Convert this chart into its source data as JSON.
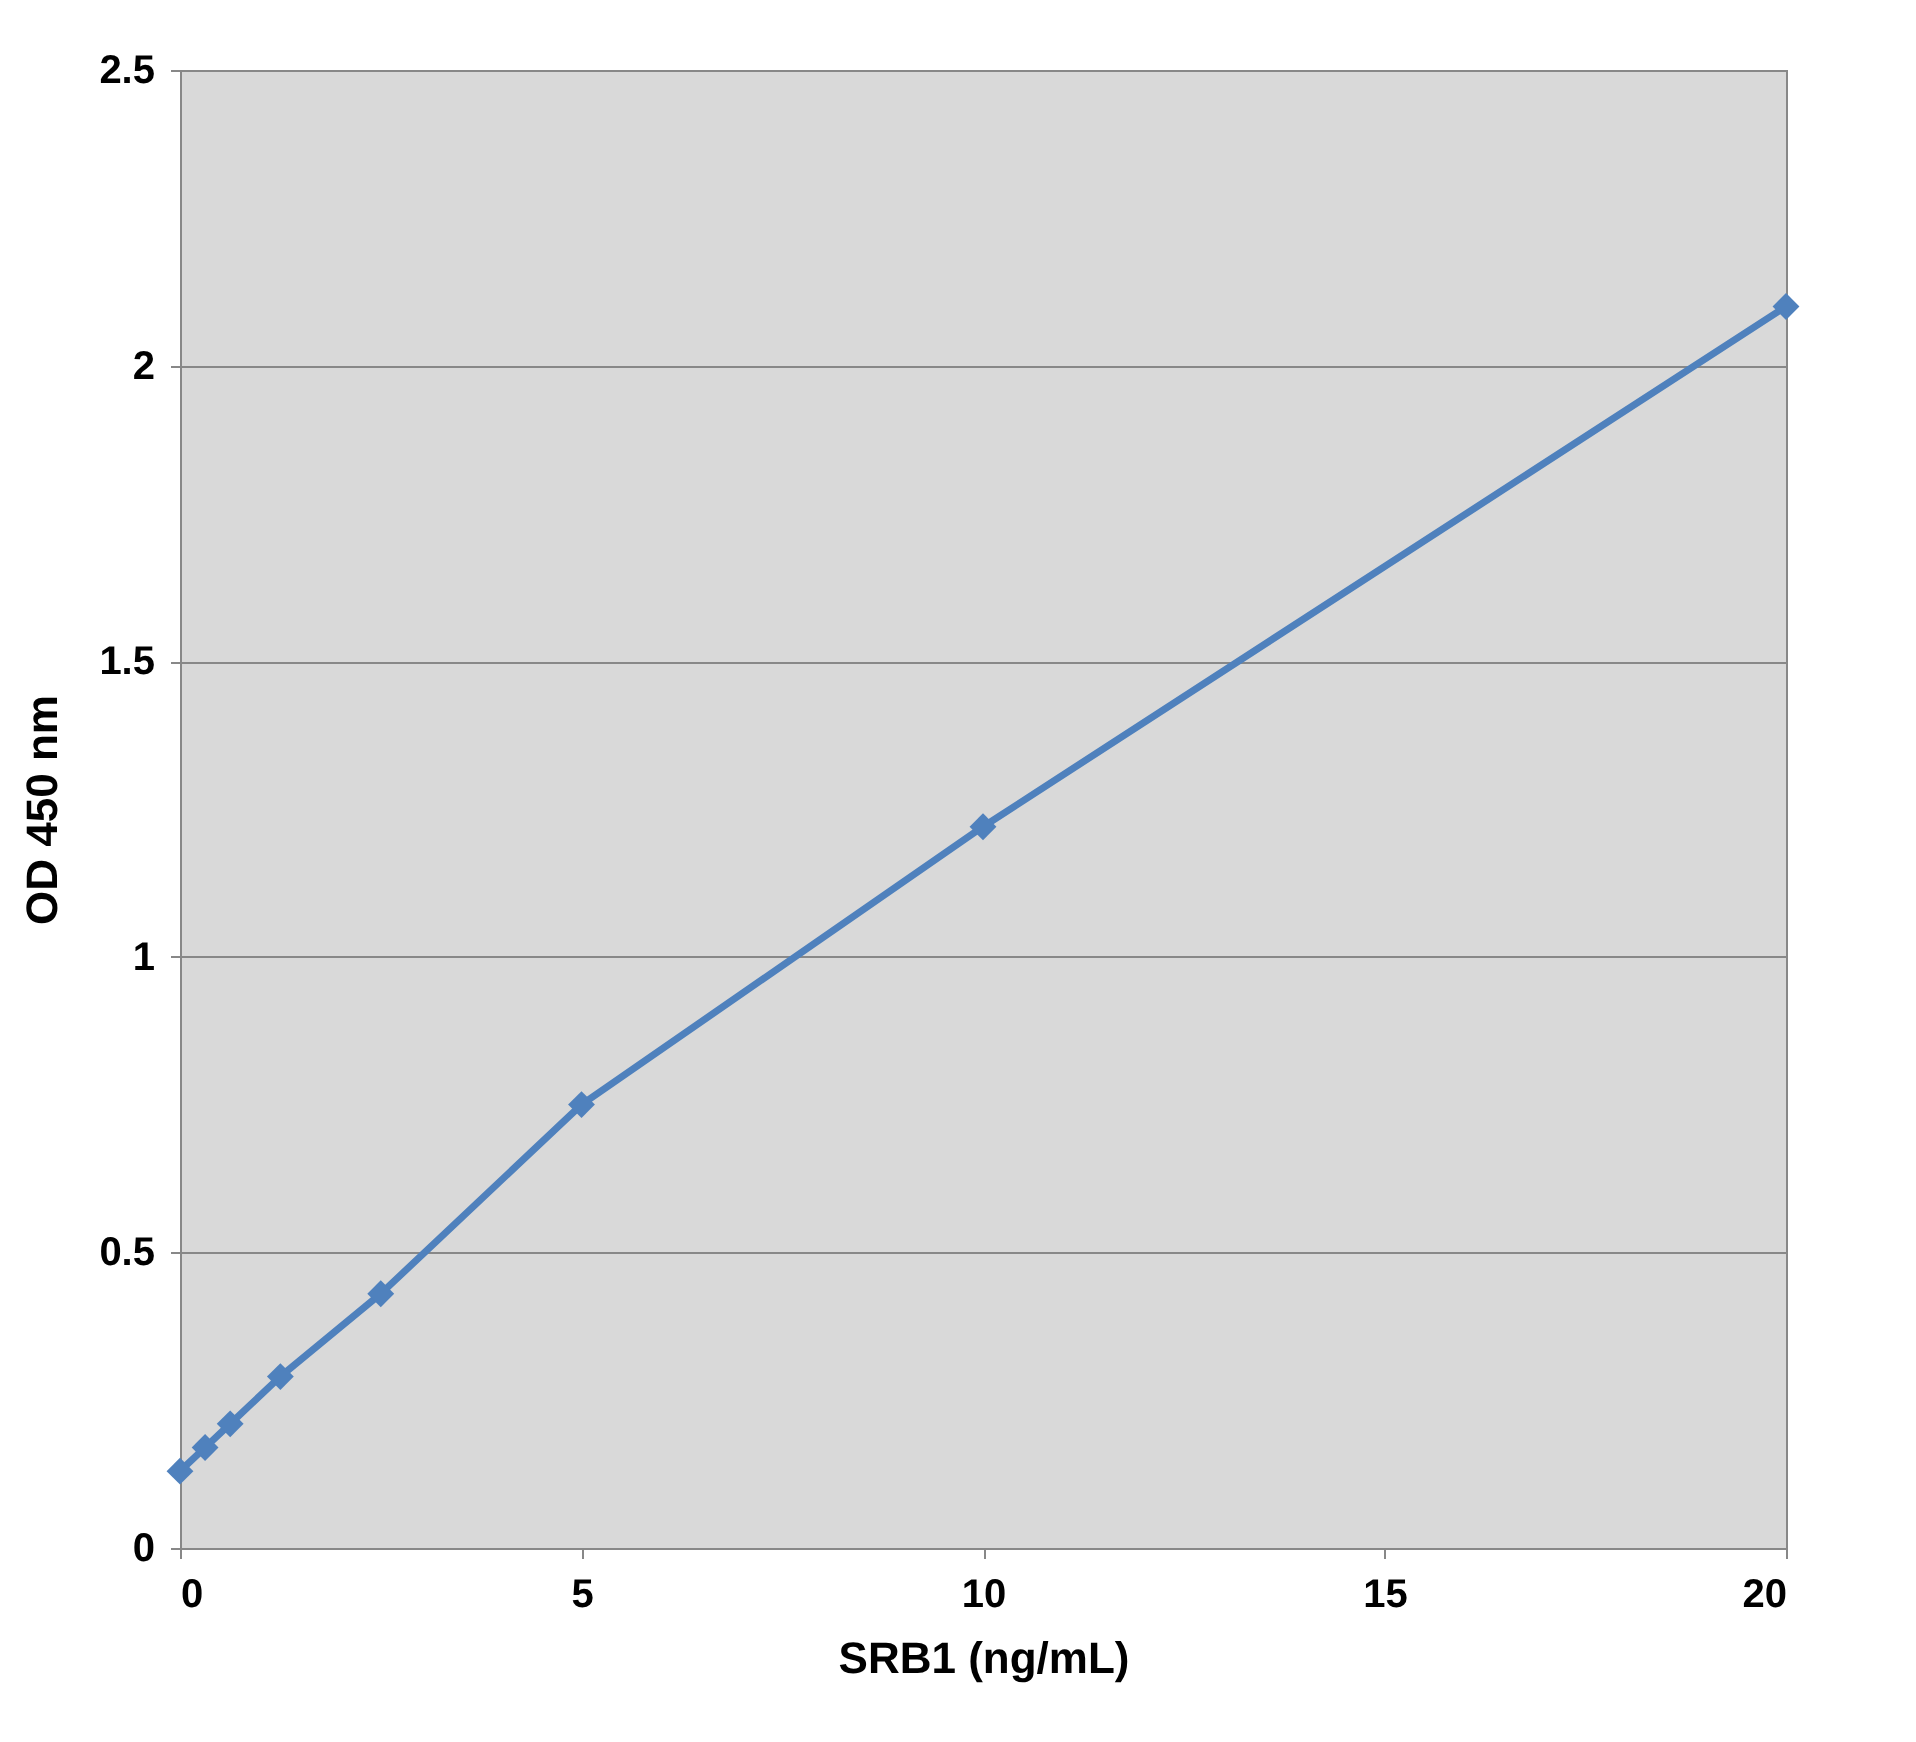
{
  "chart_data": {
    "type": "line",
    "xlabel": "SRB1 (ng/mL)",
    "ylabel": "OD 450 nm",
    "x": [
      0,
      0.3125,
      0.625,
      1.25,
      2.5,
      5,
      10,
      20
    ],
    "series": [
      {
        "color": "#4f81bd",
        "values": [
          0.13,
          0.17,
          0.21,
          0.29,
          0.43,
          0.75,
          1.22,
          2.1
        ]
      }
    ],
    "xlim": [
      0,
      20
    ],
    "xticks": [
      0,
      5,
      10,
      15,
      20
    ],
    "ylim": [
      0,
      2.5
    ],
    "yticks": [
      0,
      0.5,
      1,
      1.5,
      2,
      2.5
    ],
    "grid": "y",
    "marker": "diamond",
    "line_style": "solid"
  }
}
